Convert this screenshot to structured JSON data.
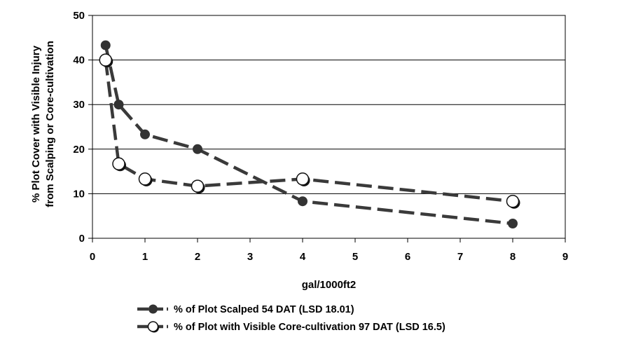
{
  "chart_data": {
    "type": "line",
    "xlabel": "gal/1000ft2",
    "ylabel_lines": [
      "% Plot Cover with Visible Injury",
      "from Scalping or Core-cultivation"
    ],
    "xlim": [
      0,
      9
    ],
    "ylim": [
      0,
      50
    ],
    "xticks": [
      "0",
      "1",
      "2",
      "3",
      "4",
      "5",
      "6",
      "7",
      "8",
      "9"
    ],
    "yticks": [
      "0",
      "10",
      "20",
      "30",
      "40",
      "50"
    ],
    "grid": "horizontal",
    "legend_position": "bottom",
    "series": [
      {
        "name": "% of Plot Scalped 54 DAT (LSD 18.01)",
        "marker": "filled-circle",
        "line_style": "dashed",
        "color": "#3a3a3a",
        "x": [
          0.25,
          0.5,
          1,
          2,
          4,
          8
        ],
        "y": [
          43.3,
          30,
          23.3,
          20,
          8.3,
          3.3
        ]
      },
      {
        "name": "% of Plot with Visible Core-cultivation 97 DAT (LSD 16.5)",
        "marker": "open-circle",
        "line_style": "dashed",
        "color": "#3a3a3a",
        "x": [
          0.25,
          0.5,
          1,
          2,
          4,
          8
        ],
        "y": [
          40,
          16.7,
          13.3,
          11.7,
          13.3,
          8.3
        ]
      }
    ]
  }
}
